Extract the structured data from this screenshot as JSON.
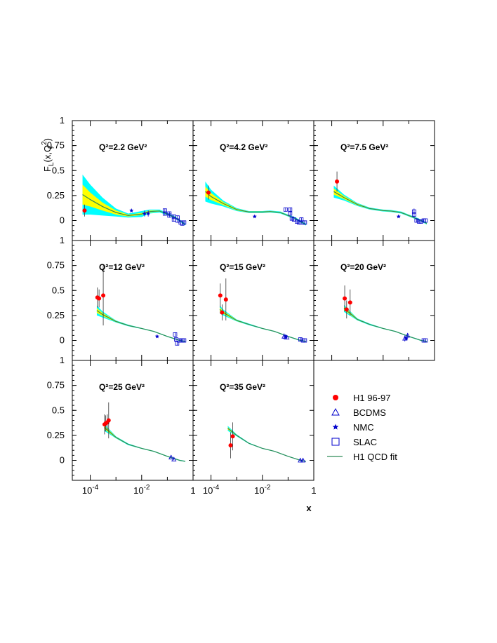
{
  "chart_data": {
    "type": "scatter",
    "ylabel": "F_L(x,Q^2)",
    "xlabel": "x",
    "x_scale": "log",
    "xlim": [
      2e-05,
      1
    ],
    "ylim": [
      -0.2,
      1
    ],
    "y_ticks": [
      "0",
      "0.25",
      "0.5",
      "0.75",
      "1"
    ],
    "x_ticks": [
      "10^-4",
      "10^-2",
      "1"
    ],
    "colors": {
      "h1": "#ff0000",
      "fixed": "#0000cc",
      "band_outer": "#00ffff",
      "band_inner": "#ffff00",
      "fit_line": "#2e8b57"
    },
    "legend": {
      "placement": "bottom-right",
      "entries": [
        {
          "label": "H1 96-97",
          "marker": "filled-circle"
        },
        {
          "label": "BCDMS",
          "marker": "open-triangle"
        },
        {
          "label": "NMC",
          "marker": "star"
        },
        {
          "label": "SLAC",
          "marker": "open-square"
        },
        {
          "label": "H1 QCD fit",
          "marker": "line"
        }
      ]
    },
    "panels": [
      {
        "q2_label": "Q²=2.2 GeV²",
        "fit": {
          "x": [
            5e-05,
            0.0001,
            0.0003,
            0.001,
            0.003,
            0.01,
            0.02,
            0.05,
            0.1,
            0.2,
            0.3,
            0.5
          ],
          "y": [
            0.26,
            0.21,
            0.14,
            0.08,
            0.05,
            0.065,
            0.09,
            0.095,
            0.065,
            0.03,
            0.0,
            -0.04
          ],
          "band_outer": [
            0.2,
            0.15,
            0.09,
            0.04,
            0.02,
            0.03,
            0.02,
            0.015,
            0.01,
            0.01,
            0.01,
            0.01
          ],
          "band_inner": [
            0.1,
            0.07,
            0.04,
            0.02,
            0.01,
            0.01,
            0.01,
            0.005,
            0.005,
            0.005,
            0.005,
            0.005
          ]
        },
        "h1": [
          {
            "x": 6e-05,
            "y": 0.1,
            "err": 0.06
          }
        ],
        "bcdms": [],
        "nmc": [
          {
            "x": 0.004,
            "y": 0.1,
            "err": 0.01
          },
          {
            "x": 0.013,
            "y": 0.07,
            "err": 0.03
          },
          {
            "x": 0.018,
            "y": 0.07,
            "err": 0.03
          }
        ],
        "slac": [
          {
            "x": 0.08,
            "y": 0.1,
            "err": 0.02
          },
          {
            "x": 0.08,
            "y": 0.07,
            "err": 0.02
          },
          {
            "x": 0.12,
            "y": 0.07,
            "err": 0.02
          },
          {
            "x": 0.12,
            "y": 0.05,
            "err": 0.02
          },
          {
            "x": 0.18,
            "y": 0.04,
            "err": 0.02
          },
          {
            "x": 0.18,
            "y": 0.01,
            "err": 0.02
          },
          {
            "x": 0.25,
            "y": 0.03,
            "err": 0.02
          },
          {
            "x": 0.25,
            "y": 0.0,
            "err": 0.02
          },
          {
            "x": 0.33,
            "y": -0.02,
            "err": 0.02
          },
          {
            "x": 0.38,
            "y": -0.03,
            "err": 0.02
          },
          {
            "x": 0.45,
            "y": -0.02,
            "err": 0.02
          }
        ]
      },
      {
        "q2_label": "Q²=4.2 GeV²",
        "fit": {
          "x": [
            6e-05,
            0.0001,
            0.0003,
            0.001,
            0.003,
            0.01,
            0.02,
            0.05,
            0.1,
            0.2,
            0.3,
            0.5
          ],
          "y": [
            0.29,
            0.24,
            0.17,
            0.11,
            0.085,
            0.085,
            0.09,
            0.08,
            0.05,
            0.02,
            -0.01,
            -0.04
          ],
          "band_outer": [
            0.1,
            0.07,
            0.03,
            0.015,
            0.01,
            0.01,
            0.01,
            0.01,
            0.01,
            0.01,
            0.01,
            0.01
          ],
          "band_inner": [
            0.05,
            0.035,
            0.015,
            0.008,
            0.005,
            0.005,
            0.005,
            0.005,
            0.005,
            0.005,
            0.005,
            0.005
          ]
        },
        "h1": [
          {
            "x": 8e-05,
            "y": 0.28,
            "err": 0.07
          }
        ],
        "bcdms": [],
        "nmc": [
          {
            "x": 0.005,
            "y": 0.04,
            "err": 0.01
          }
        ],
        "slac": [
          {
            "x": 0.08,
            "y": 0.11,
            "err": 0.02
          },
          {
            "x": 0.12,
            "y": 0.11,
            "err": 0.02
          },
          {
            "x": 0.12,
            "y": 0.07,
            "err": 0.02
          },
          {
            "x": 0.14,
            "y": 0.02,
            "err": 0.02
          },
          {
            "x": 0.17,
            "y": 0.01,
            "err": 0.02
          },
          {
            "x": 0.22,
            "y": -0.01,
            "err": 0.02
          },
          {
            "x": 0.27,
            "y": -0.02,
            "err": 0.02
          },
          {
            "x": 0.33,
            "y": 0.01,
            "err": 0.02
          },
          {
            "x": 0.38,
            "y": -0.02,
            "err": 0.02
          },
          {
            "x": 0.45,
            "y": -0.02,
            "err": 0.02
          }
        ]
      },
      {
        "q2_label": "Q²=7.5 GeV²",
        "fit": {
          "x": [
            0.00012,
            0.0003,
            0.001,
            0.003,
            0.01,
            0.02,
            0.05,
            0.1,
            0.2,
            0.3,
            0.5
          ],
          "y": [
            0.29,
            0.23,
            0.16,
            0.12,
            0.1,
            0.095,
            0.08,
            0.05,
            0.02,
            0.0,
            -0.03
          ],
          "band_outer": [
            0.06,
            0.03,
            0.015,
            0.01,
            0.01,
            0.01,
            0.01,
            0.01,
            0.01,
            0.01,
            0.01
          ],
          "band_inner": [
            0.03,
            0.015,
            0.008,
            0.005,
            0.005,
            0.005,
            0.005,
            0.005,
            0.005,
            0.005,
            0.005
          ]
        },
        "h1": [
          {
            "x": 0.00016,
            "y": 0.39,
            "err": 0.1
          }
        ],
        "bcdms": [],
        "nmc": [
          {
            "x": 0.04,
            "y": 0.04,
            "err": 0.01
          }
        ],
        "slac": [
          {
            "x": 0.16,
            "y": 0.09,
            "err": 0.03
          },
          {
            "x": 0.16,
            "y": 0.06,
            "err": 0.03
          },
          {
            "x": 0.2,
            "y": 0.0,
            "err": 0.02
          },
          {
            "x": 0.25,
            "y": -0.01,
            "err": 0.02
          },
          {
            "x": 0.3,
            "y": -0.01,
            "err": 0.02
          },
          {
            "x": 0.38,
            "y": 0.0,
            "err": 0.02
          },
          {
            "x": 0.45,
            "y": 0.0,
            "err": 0.02
          }
        ]
      },
      {
        "q2_label": "Q²=12 GeV²",
        "fit": {
          "x": [
            0.00018,
            0.0003,
            0.001,
            0.003,
            0.01,
            0.03,
            0.1,
            0.2,
            0.3,
            0.5
          ],
          "y": [
            0.3,
            0.26,
            0.19,
            0.15,
            0.12,
            0.09,
            0.04,
            0.015,
            0.0,
            -0.01
          ],
          "band_outer": [
            0.05,
            0.03,
            0.01,
            0.008,
            0.005,
            0.005,
            0.005,
            0.005,
            0.005,
            0.005
          ],
          "band_inner": [
            0.025,
            0.015,
            0.006,
            0.004,
            0.003,
            0.003,
            0.003,
            0.003,
            0.003,
            0.003
          ]
        },
        "h1": [
          {
            "x": 0.00019,
            "y": 0.43,
            "err": 0.1
          },
          {
            "x": 0.00022,
            "y": 0.42,
            "err": 0.09
          },
          {
            "x": 0.00032,
            "y": 0.45,
            "err": 0.3
          }
        ],
        "bcdms": [],
        "nmc": [
          {
            "x": 0.04,
            "y": 0.04,
            "err": 0.01
          }
        ],
        "slac": [
          {
            "x": 0.2,
            "y": 0.06,
            "err": 0.02
          },
          {
            "x": 0.22,
            "y": 0.01,
            "err": 0.02
          },
          {
            "x": 0.24,
            "y": -0.03,
            "err": 0.02
          },
          {
            "x": 0.3,
            "y": 0.0,
            "err": 0.02
          },
          {
            "x": 0.38,
            "y": 0.0,
            "err": 0.02
          },
          {
            "x": 0.45,
            "y": 0.0,
            "err": 0.02
          }
        ]
      },
      {
        "q2_label": "Q²=15 GeV²",
        "fit": {
          "x": [
            0.00022,
            0.0003,
            0.001,
            0.003,
            0.01,
            0.03,
            0.1,
            0.2,
            0.3,
            0.5
          ],
          "y": [
            0.31,
            0.28,
            0.2,
            0.16,
            0.12,
            0.09,
            0.04,
            0.015,
            0.0,
            -0.01
          ],
          "band_outer": [
            0.04,
            0.03,
            0.01,
            0.008,
            0.005,
            0.005,
            0.005,
            0.005,
            0.005,
            0.005
          ],
          "band_inner": [
            0.02,
            0.015,
            0.006,
            0.004,
            0.003,
            0.003,
            0.003,
            0.003,
            0.003,
            0.003
          ]
        },
        "h1": [
          {
            "x": 0.00023,
            "y": 0.45,
            "err": 0.12
          },
          {
            "x": 0.00027,
            "y": 0.28,
            "err": 0.08
          },
          {
            "x": 0.00038,
            "y": 0.41,
            "err": 0.21
          }
        ],
        "bcdms": [
          {
            "x": 0.07,
            "y": 0.04,
            "err": 0.03
          },
          {
            "x": 0.09,
            "y": 0.03,
            "err": 0.02
          }
        ],
        "nmc": [
          {
            "x": 0.08,
            "y": 0.04,
            "err": 0.02
          }
        ],
        "slac": [
          {
            "x": 0.3,
            "y": 0.01,
            "err": 0.02
          },
          {
            "x": 0.38,
            "y": 0.0,
            "err": 0.02
          },
          {
            "x": 0.45,
            "y": 0.0,
            "err": 0.02
          }
        ]
      },
      {
        "q2_label": "Q²=20 GeV²",
        "fit": {
          "x": [
            0.0003,
            0.001,
            0.003,
            0.01,
            0.03,
            0.1,
            0.2,
            0.3,
            0.5
          ],
          "y": [
            0.32,
            0.21,
            0.16,
            0.12,
            0.09,
            0.04,
            0.015,
            0.0,
            -0.01
          ],
          "band_outer": [
            0.035,
            0.01,
            0.008,
            0.005,
            0.005,
            0.005,
            0.005,
            0.005,
            0.005
          ],
          "band_inner": [
            0.018,
            0.006,
            0.004,
            0.003,
            0.003,
            0.003,
            0.003,
            0.003,
            0.003
          ]
        },
        "h1": [
          {
            "x": 0.00032,
            "y": 0.42,
            "err": 0.13
          },
          {
            "x": 0.00038,
            "y": 0.31,
            "err": 0.09
          },
          {
            "x": 0.00052,
            "y": 0.38,
            "err": 0.13
          }
        ],
        "bcdms": [
          {
            "x": 0.07,
            "y": 0.02,
            "err": 0.03
          },
          {
            "x": 0.09,
            "y": 0.05,
            "err": 0.02
          }
        ],
        "nmc": [
          {
            "x": 0.08,
            "y": 0.02,
            "err": 0.02
          }
        ],
        "slac": [
          {
            "x": 0.38,
            "y": 0.0,
            "err": 0.01
          },
          {
            "x": 0.45,
            "y": 0.0,
            "err": 0.01
          }
        ]
      },
      {
        "q2_label": "Q²=25 GeV²",
        "fit": {
          "x": [
            0.00035,
            0.001,
            0.003,
            0.01,
            0.03,
            0.1,
            0.2,
            0.3,
            0.5
          ],
          "y": [
            0.33,
            0.23,
            0.16,
            0.12,
            0.09,
            0.04,
            0.015,
            0.0,
            -0.01
          ],
          "band_outer": [
            0.035,
            0.01,
            0.008,
            0.005,
            0.005,
            0.005,
            0.005,
            0.005,
            0.005
          ],
          "band_inner": [
            0.018,
            0.006,
            0.004,
            0.003,
            0.003,
            0.003,
            0.003,
            0.003,
            0.003
          ]
        },
        "h1": [
          {
            "x": 0.00036,
            "y": 0.36,
            "err": 0.1
          },
          {
            "x": 0.0004,
            "y": 0.37,
            "err": 0.08
          },
          {
            "x": 0.00046,
            "y": 0.38,
            "err": 0.08
          },
          {
            "x": 0.00052,
            "y": 0.4,
            "err": 0.18
          }
        ],
        "bcdms": [
          {
            "x": 0.14,
            "y": 0.03,
            "err": 0.02
          },
          {
            "x": 0.18,
            "y": 0.01,
            "err": 0.01
          }
        ],
        "nmc": [],
        "slac": []
      },
      {
        "q2_label": "Q²=35 GeV²",
        "fit": {
          "x": [
            0.00045,
            0.001,
            0.003,
            0.01,
            0.03,
            0.1,
            0.2,
            0.3,
            0.5
          ],
          "y": [
            0.32,
            0.25,
            0.17,
            0.12,
            0.09,
            0.04,
            0.015,
            0.0,
            -0.01
          ],
          "band_outer": [
            0.025,
            0.01,
            0.006,
            0.004,
            0.004,
            0.004,
            0.004,
            0.004,
            0.004
          ],
          "band_inner": [
            0.012,
            0.005,
            0.003,
            0.002,
            0.002,
            0.002,
            0.002,
            0.002,
            0.002
          ]
        },
        "h1": [
          {
            "x": 0.00058,
            "y": 0.15,
            "err": 0.13
          },
          {
            "x": 0.0007,
            "y": 0.24,
            "err": 0.14
          }
        ],
        "bcdms": [
          {
            "x": 0.3,
            "y": 0.0,
            "err": 0.01
          },
          {
            "x": 0.38,
            "y": 0.0,
            "err": 0.01
          }
        ],
        "nmc": [],
        "slac": []
      }
    ]
  }
}
